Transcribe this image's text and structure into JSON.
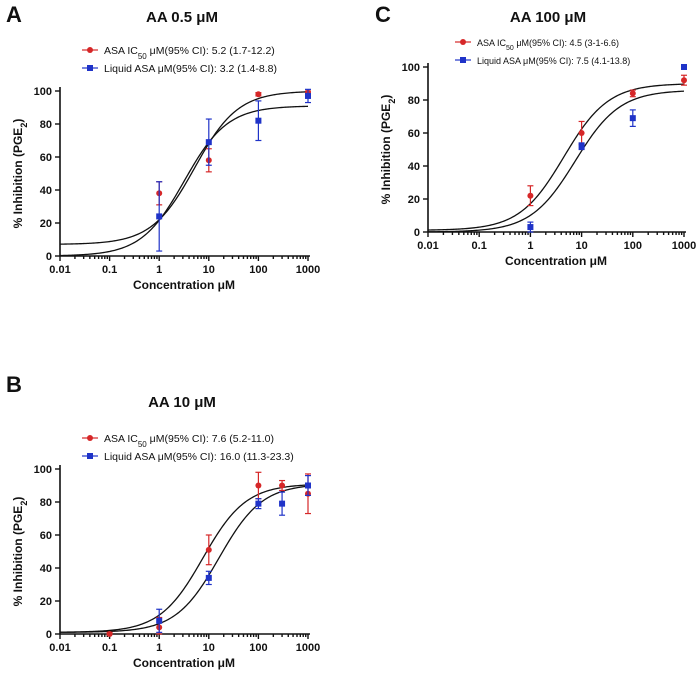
{
  "figure": {
    "colors": {
      "asa": "#d62728",
      "liquid": "#1f33c8",
      "fit": "#111111"
    }
  },
  "chart_data": [
    {
      "panel": "A",
      "type": "scatter",
      "title": "AA 0.5 μM",
      "xlabel": "Concentration μM",
      "ylabel": "% Inhibition (PGE2)",
      "xscale": "log",
      "xlim": [
        0.01,
        1000
      ],
      "ylim": [
        0,
        100
      ],
      "xticks": [
        "0.01",
        "0.1",
        "1",
        "10",
        "100",
        "1000"
      ],
      "yticks": [
        "0",
        "20",
        "40",
        "60",
        "80",
        "100"
      ],
      "legend": {
        "asa": {
          "prefix": "ASA IC",
          "sub": "50",
          "suffix": " μM(95% CI): 5.2 (1.7-12.2)"
        },
        "liquid": {
          "prefix": "Liquid ASA μM(95% CI): 3.2 (1.4-8.8)",
          "sub": "",
          "suffix": ""
        }
      },
      "series": [
        {
          "name": "ASA",
          "marker": "circle",
          "x": [
            1,
            10,
            100,
            1000
          ],
          "y": [
            38,
            58,
            98,
            99
          ],
          "err": [
            7,
            7,
            1,
            1
          ]
        },
        {
          "name": "Liquid ASA",
          "marker": "square",
          "x": [
            1,
            10,
            100,
            1000
          ],
          "y": [
            24,
            69,
            82,
            97
          ],
          "err": [
            21,
            14,
            12,
            4
          ]
        }
      ],
      "fits": [
        {
          "bottom": 7,
          "top": 100,
          "ic50": 5.2,
          "hill": 1.0
        },
        {
          "bottom": 0,
          "top": 91,
          "ic50": 3.2,
          "hill": 1.0
        }
      ]
    },
    {
      "panel": "B",
      "type": "scatter",
      "title": "AA 10 μM",
      "xlabel": "Concentration μM",
      "ylabel": "% Inhibition (PGE2)",
      "xscale": "log",
      "xlim": [
        0.01,
        1000
      ],
      "ylim": [
        0,
        100
      ],
      "xticks": [
        "0.01",
        "0.1",
        "1",
        "10",
        "100",
        "1000"
      ],
      "yticks": [
        "0",
        "20",
        "40",
        "60",
        "80",
        "100"
      ],
      "legend": {
        "asa": {
          "prefix": "ASA IC",
          "sub": "50",
          "suffix": " μM(95% CI): 7.6 (5.2-11.0)"
        },
        "liquid": {
          "prefix": "Liquid ASA μM(95% CI): 16.0 (11.3-23.3)",
          "sub": "",
          "suffix": ""
        }
      },
      "series": [
        {
          "name": "ASA",
          "marker": "circle",
          "x": [
            0.1,
            1,
            10,
            100,
            300,
            1000
          ],
          "y": [
            0,
            4,
            51,
            90,
            90,
            85
          ],
          "err": [
            1,
            6,
            9,
            8,
            3,
            12
          ]
        },
        {
          "name": "Liquid ASA",
          "marker": "square",
          "x": [
            1,
            10,
            100,
            300,
            1000
          ],
          "y": [
            8,
            34,
            79,
            79,
            90
          ],
          "err": [
            7,
            4,
            3,
            7,
            6
          ]
        }
      ],
      "fits": [
        {
          "bottom": 1,
          "top": 91,
          "ic50": 7.6,
          "hill": 1.0
        },
        {
          "bottom": 1,
          "top": 91,
          "ic50": 16.0,
          "hill": 1.0
        }
      ]
    },
    {
      "panel": "C",
      "type": "scatter",
      "title": "AA 100 μM",
      "xlabel": "Concentration μM",
      "ylabel": "% Inhibition (PGE2)",
      "xscale": "log",
      "xlim": [
        0.01,
        1000
      ],
      "ylim": [
        0,
        100
      ],
      "xticks": [
        "0.01",
        "0.1",
        "1",
        "10",
        "100",
        "1000"
      ],
      "yticks": [
        "0",
        "20",
        "40",
        "60",
        "80",
        "100"
      ],
      "legend": {
        "asa": {
          "prefix": "ASA IC",
          "sub": "50",
          "suffix": " μM(95% CI): 4.5 (3-1-6.6)"
        },
        "liquid": {
          "prefix": "Liquid ASA μM(95% CI): 7.5 (4.1-13.8)",
          "sub": "",
          "suffix": ""
        }
      },
      "series": [
        {
          "name": "ASA",
          "marker": "circle",
          "x": [
            1,
            10,
            100,
            1000
          ],
          "y": [
            22,
            60,
            84,
            92
          ],
          "err": [
            6,
            7,
            2,
            3
          ]
        },
        {
          "name": "Liquid ASA",
          "marker": "square",
          "x": [
            1,
            10,
            100,
            1000
          ],
          "y": [
            3,
            52,
            69,
            100
          ],
          "err": [
            3,
            2,
            5,
            1
          ]
        }
      ],
      "fits": [
        {
          "bottom": 1,
          "top": 90,
          "ic50": 4.5,
          "hill": 1.0
        },
        {
          "bottom": 0,
          "top": 86,
          "ic50": 7.5,
          "hill": 1.0
        }
      ]
    }
  ]
}
